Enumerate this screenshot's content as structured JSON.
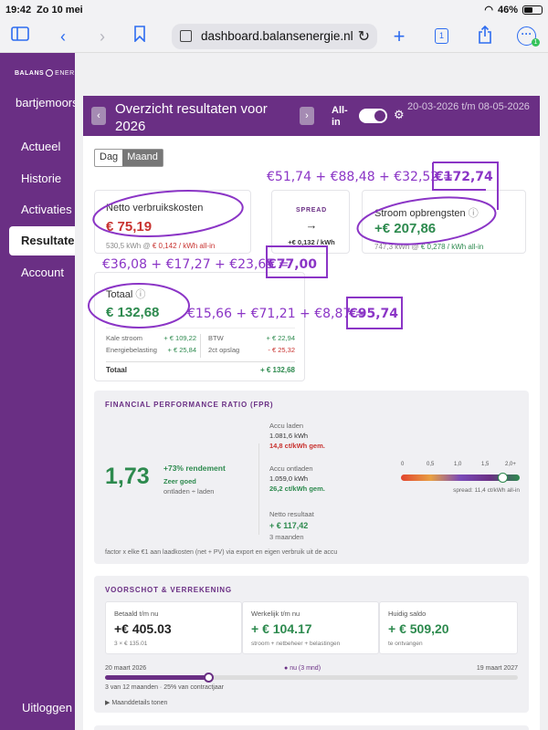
{
  "status": {
    "time": "19:42",
    "date": "Zo 10 mei",
    "battery": "46%"
  },
  "browser": {
    "url": "dashboard.balansenergie.nl",
    "tab_count": "1"
  },
  "sidebar": {
    "logo": "BALANS",
    "logo_light": "ENERGIE",
    "user": "bartjemoorse",
    "items": [
      {
        "label": "Actueel"
      },
      {
        "label": "Historie"
      },
      {
        "label": "Activaties"
      },
      {
        "label": "Resultaten"
      },
      {
        "label": "Account"
      }
    ],
    "logout": "Uitloggen"
  },
  "header": {
    "prev": "‹",
    "next": "›",
    "title": "Overzicht resultaten voor 2026",
    "allin_label": "All-in",
    "date_range": "20-03-2026 t/m 08-05-2026"
  },
  "tabs": {
    "day": "Dag",
    "month": "Maand"
  },
  "netto": {
    "label": "Netto verbruikskosten",
    "value": "€ 75,19",
    "detail": "530,5 kWh @",
    "rate": "€ 0,142 / kWh all-in"
  },
  "spread": {
    "label": "SPREAD",
    "arrow": "→",
    "value": "+€ 0,132 / kWh"
  },
  "stroom": {
    "label": "Stroom opbrengsten",
    "info": "ⓘ",
    "value": "+€ 207,86",
    "detail": "747,3 kWh @",
    "rate": "€ 0,278 / kWh all-in"
  },
  "totaal": {
    "label": "Totaal",
    "info": "ⓘ",
    "value": "€ 132,68",
    "rows": [
      {
        "l1": "Kale stroom",
        "v1": "+ € 109,22",
        "l2": "BTW",
        "v2": "+ € 22,94"
      },
      {
        "l1": "Energiebelasting",
        "v1": "+ € 25,84",
        "l2": "2ct opslag",
        "v2": "- € 25,32"
      }
    ],
    "total_label": "Totaal",
    "total_value": "+ € 132,68"
  },
  "fpr": {
    "title": "FINANCIAL PERFORMANCE RATIO (FPR)",
    "value": "1,73",
    "rendement": "+73% rendement",
    "quality": "Zeer goed",
    "formula": "ontladen ÷ laden",
    "accu_laden_label": "Accu laden",
    "accu_laden_kwh": "1.081,6 kWh",
    "accu_laden_rate": "14,8 ct/kWh gem.",
    "accu_ontladen_label": "Accu ontladen",
    "accu_ontladen_kwh": "1.059,0 kWh",
    "accu_ontladen_rate": "26,2 ct/kWh gem.",
    "netto_label": "Netto resultaat",
    "netto_value": "+ € 117,42",
    "netto_period": "3 maanden",
    "scale": [
      "0",
      "0,5",
      "1,0",
      "1,5",
      "2,0+"
    ],
    "scale_level": 1.73,
    "scale_max": 2.0,
    "spread": "spread: 11,4 ct/kWh all-in",
    "footnote": "factor x elke €1 aan laadkosten (net + PV) via export en eigen verbruik uit de accu"
  },
  "voorschot": {
    "title": "VOORSCHOT & VERREKENING",
    "cards": [
      {
        "label": "Betaald t/m nu",
        "value": "+€ 405.03",
        "sub": "3 × € 135.01"
      },
      {
        "label": "Werkelijk t/m nu",
        "value": "+ € 104.17",
        "sub": "stroom + netbeheer + belastingen"
      },
      {
        "label": "Huidig saldo",
        "value": "+ € 509,20",
        "sub": "te ontvangen"
      }
    ],
    "start": "20 maart 2026",
    "now": "nu (3 mnd)",
    "end": "19 maart 2027",
    "progress": 0.25,
    "progress_text": "3 van 12 maanden · 25% van contractjaar",
    "details": "▶ Maanddetails tonen"
  },
  "annotations": {
    "top": "€51,74 + €88,48 + €32,52 =",
    "top_total": "€172,74",
    "middle": "€36,08 + €17,27 + €23,65 =",
    "middle_total": "€77,00",
    "bottom": "€15,66 + €71,21 + €8,87 =",
    "bottom_total": "€95,74"
  },
  "colors": {
    "brand": "#6a2f84",
    "positive": "#2d8a4e",
    "negative": "#c8322f",
    "annotation": "#8b35c6"
  }
}
